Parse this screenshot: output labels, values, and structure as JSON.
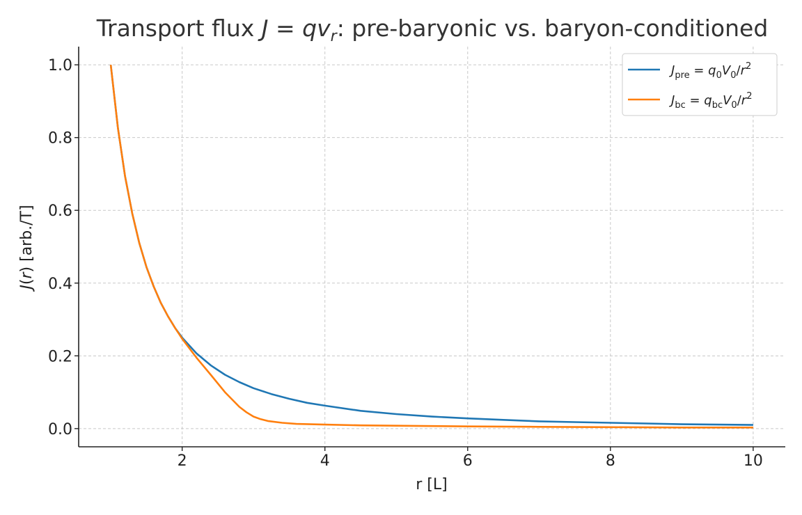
{
  "chart_data": {
    "type": "line",
    "title": "Transport flux J = qv_r: pre-baryonic vs. baryon-conditioned",
    "xlabel": "r [L]",
    "ylabel": "J(r) [arb./T]",
    "xlim": [
      0.55,
      10.45
    ],
    "ylim": [
      -0.05,
      1.05
    ],
    "xticks": [
      2,
      4,
      6,
      8,
      10
    ],
    "yticks": [
      0.0,
      0.2,
      0.4,
      0.6,
      0.8,
      1.0
    ],
    "xtick_labels": [
      "2",
      "4",
      "6",
      "8",
      "10"
    ],
    "ytick_labels": [
      "0.0",
      "0.2",
      "0.4",
      "0.6",
      "0.8",
      "1.0"
    ],
    "grid": true,
    "legend_position": "upper right",
    "series": [
      {
        "name": "J_pre = q_0 V_0 / r^2",
        "color": "#1f77b4",
        "x": [
          1.0,
          1.1,
          1.2,
          1.3,
          1.4,
          1.5,
          1.6,
          1.7,
          1.8,
          1.9,
          2.0,
          2.2,
          2.4,
          2.6,
          2.8,
          3.0,
          3.25,
          3.5,
          3.75,
          4.0,
          4.5,
          5.0,
          5.5,
          6.0,
          6.5,
          7.0,
          7.5,
          8.0,
          8.5,
          9.0,
          9.5,
          10.0
        ],
        "y": [
          1.0,
          0.826,
          0.694,
          0.592,
          0.51,
          0.444,
          0.391,
          0.346,
          0.309,
          0.277,
          0.25,
          0.207,
          0.174,
          0.148,
          0.128,
          0.111,
          0.095,
          0.082,
          0.071,
          0.063,
          0.049,
          0.04,
          0.033,
          0.028,
          0.024,
          0.02,
          0.018,
          0.016,
          0.014,
          0.012,
          0.011,
          0.01
        ]
      },
      {
        "name": "J_bc = q_bc V_0 / r^2",
        "color": "#ff7f0e",
        "x": [
          1.0,
          1.1,
          1.2,
          1.3,
          1.4,
          1.5,
          1.6,
          1.7,
          1.8,
          1.9,
          2.0,
          2.2,
          2.4,
          2.6,
          2.8,
          2.9,
          3.0,
          3.1,
          3.2,
          3.4,
          3.6,
          3.8,
          4.0,
          4.5,
          5.0,
          5.5,
          6.0,
          7.0,
          8.0,
          9.0,
          10.0
        ],
        "y": [
          1.0,
          0.826,
          0.694,
          0.592,
          0.51,
          0.444,
          0.391,
          0.346,
          0.309,
          0.277,
          0.247,
          0.195,
          0.148,
          0.1,
          0.06,
          0.045,
          0.033,
          0.026,
          0.021,
          0.016,
          0.013,
          0.012,
          0.011,
          0.009,
          0.008,
          0.007,
          0.006,
          0.005,
          0.004,
          0.003,
          0.003
        ]
      }
    ]
  }
}
